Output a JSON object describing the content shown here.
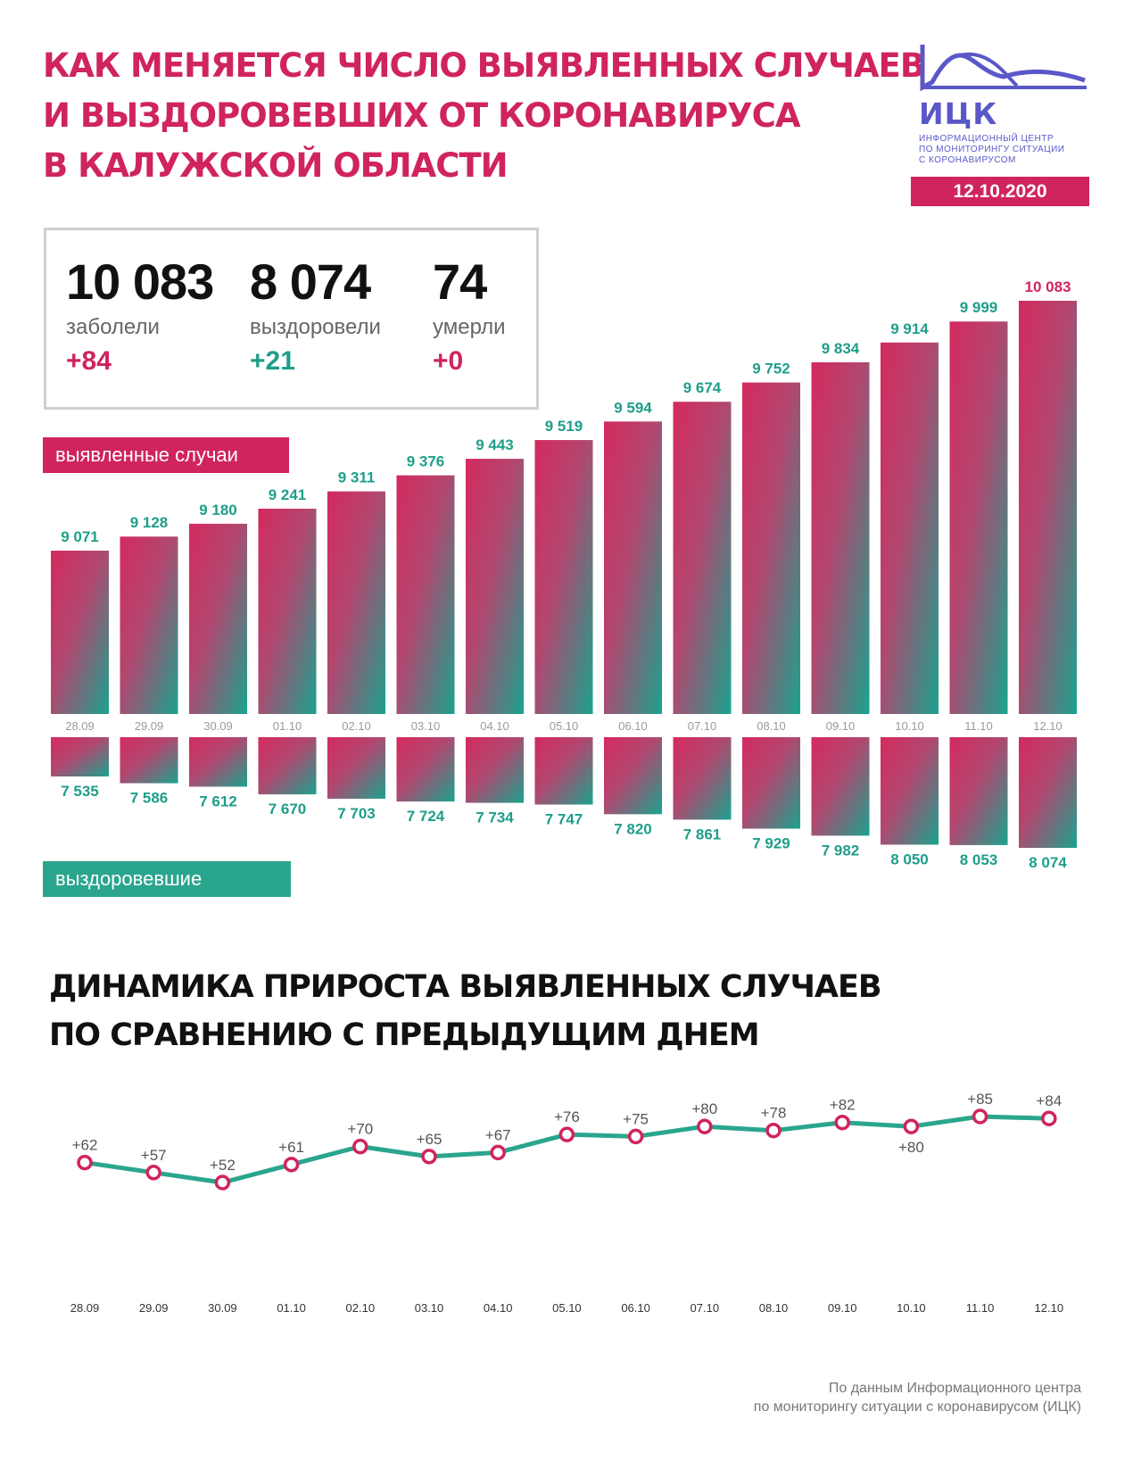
{
  "header": {
    "title_lines": [
      "Как меняется число выявленных случаев",
      "и выздоровевших от коронавируса",
      "в Калужской области"
    ]
  },
  "logo": {
    "name": "ИЦК",
    "sub_lines": [
      "Информационный центр",
      "по мониторингу ситуации",
      "с коронавирусом"
    ]
  },
  "date": "12.10.2020",
  "stats": {
    "infected": {
      "value": "10 083",
      "label": "заболели",
      "delta": "+84"
    },
    "recovered": {
      "value": "8 074",
      "label": "выздоровели",
      "delta": "+21"
    },
    "died": {
      "value": "74",
      "label": "умерли",
      "delta": "+0"
    }
  },
  "tags": {
    "cases": "выявленные случаи",
    "recovered": "выздоровевшие"
  },
  "subtitle_lines": [
    "Динамика прироста выявленных случаев",
    "по сравнению с предыдущим днем"
  ],
  "footer_lines": [
    "По данным Информационного центра",
    "по мониторингу ситуации с коронавирусом (ИЦК)"
  ],
  "colors": {
    "accent": "#d0245c",
    "teal": "#1e9e8a",
    "logo": "#5a58c8"
  },
  "chart_data": [
    {
      "type": "bar",
      "categories": [
        "28.09",
        "29.09",
        "30.09",
        "01.10",
        "02.10",
        "03.10",
        "04.10",
        "05.10",
        "06.10",
        "07.10",
        "08.10",
        "09.10",
        "10.10",
        "11.10",
        "12.10"
      ],
      "series": [
        {
          "name": "выявленные случаи",
          "values": [
            9071,
            9128,
            9180,
            9241,
            9311,
            9376,
            9443,
            9519,
            9594,
            9674,
            9752,
            9834,
            9914,
            9999,
            10083
          ],
          "labels": [
            "9 071",
            "9 128",
            "9 180",
            "9 241",
            "9 311",
            "9 376",
            "9 443",
            "9 519",
            "9 594",
            "9 674",
            "9 752",
            "9 834",
            "9 914",
            "9 999",
            "10 083"
          ]
        },
        {
          "name": "выздоровевшие",
          "values": [
            7535,
            7586,
            7612,
            7670,
            7703,
            7724,
            7734,
            7747,
            7820,
            7861,
            7929,
            7982,
            8050,
            8053,
            8074
          ],
          "labels": [
            "7 535",
            "7 586",
            "7 612",
            "7 670",
            "7 703",
            "7 724",
            "7 734",
            "7 747",
            "7 820",
            "7 861",
            "7 929",
            "7 982",
            "8 050",
            "8 053",
            "8 074"
          ]
        }
      ]
    },
    {
      "type": "line",
      "title": "Динамика прироста выявленных случаев по сравнению с предыдущим днем",
      "categories": [
        "28.09",
        "29.09",
        "30.09",
        "01.10",
        "02.10",
        "03.10",
        "04.10",
        "05.10",
        "06.10",
        "07.10",
        "08.10",
        "09.10",
        "10.10",
        "11.10",
        "12.10"
      ],
      "values": [
        62,
        57,
        52,
        61,
        70,
        65,
        67,
        76,
        75,
        80,
        78,
        82,
        80,
        85,
        84
      ],
      "labels": [
        "+62",
        "+57",
        "+52",
        "+61",
        "+70",
        "+65",
        "+67",
        "+76",
        "+75",
        "+80",
        "+78",
        "+82",
        "+80",
        "+85",
        "+84"
      ]
    }
  ]
}
